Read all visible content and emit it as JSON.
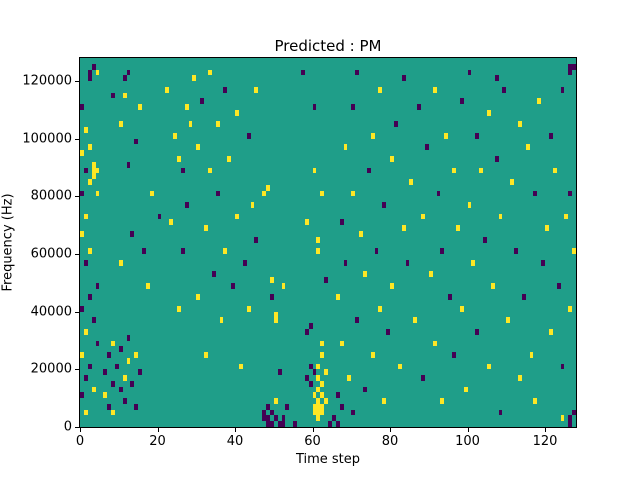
{
  "chart_data": {
    "type": "heatmap",
    "title": "Predicted : PM",
    "xlabel": "Time step",
    "ylabel": "Frequency (Hz)",
    "xlim": [
      0,
      128
    ],
    "ylim": [
      0,
      128000
    ],
    "x_ticks": [
      0,
      20,
      40,
      60,
      80,
      100,
      120
    ],
    "y_ticks": [
      0,
      20000,
      40000,
      60000,
      80000,
      100000,
      120000
    ],
    "grid": {
      "cols": 128,
      "rows": 64,
      "freq_bin_hz": 2000
    },
    "legend": null,
    "grid_lines": false,
    "colors": {
      "background": "#1f9e89",
      "high": "#fde725",
      "low": "#440154"
    },
    "value_legend": {
      "y": "high (yellow)",
      "p": "low (purple)"
    },
    "cells": [
      [
        2,
        61,
        "p"
      ],
      [
        2,
        60,
        "p"
      ],
      [
        3,
        62,
        "p"
      ],
      [
        4,
        61,
        "y"
      ],
      [
        11,
        60,
        "p"
      ],
      [
        12,
        61,
        "p"
      ],
      [
        33,
        61,
        "y"
      ],
      [
        57,
        61,
        "p"
      ],
      [
        71,
        61,
        "p"
      ],
      [
        83,
        60,
        "p"
      ],
      [
        100,
        61,
        "p"
      ],
      [
        107,
        60,
        "p"
      ],
      [
        126,
        62,
        "p"
      ],
      [
        127,
        62,
        "p"
      ],
      [
        126,
        61,
        "p"
      ],
      [
        0,
        55,
        "p"
      ],
      [
        0,
        47,
        "y"
      ],
      [
        0,
        40,
        "p"
      ],
      [
        0,
        33,
        "y"
      ],
      [
        0,
        20,
        "p"
      ],
      [
        0,
        12,
        "y"
      ],
      [
        0,
        5,
        "p"
      ],
      [
        1,
        51,
        "y"
      ],
      [
        1,
        44,
        "p"
      ],
      [
        1,
        36,
        "y"
      ],
      [
        1,
        28,
        "p"
      ],
      [
        1,
        16,
        "y"
      ],
      [
        1,
        8,
        "p"
      ],
      [
        1,
        2,
        "y"
      ],
      [
        2,
        48,
        "y"
      ],
      [
        2,
        42,
        "y"
      ],
      [
        2,
        30,
        "y"
      ],
      [
        2,
        22,
        "p"
      ],
      [
        2,
        10,
        "p"
      ],
      [
        3,
        45,
        "y"
      ],
      [
        3,
        44,
        "y"
      ],
      [
        3,
        43,
        "y"
      ],
      [
        3,
        18,
        "p"
      ],
      [
        3,
        6,
        "y"
      ],
      [
        4,
        44,
        "y"
      ],
      [
        4,
        40,
        "y"
      ],
      [
        4,
        24,
        "p"
      ],
      [
        4,
        14,
        "p"
      ],
      [
        6,
        9,
        "p"
      ],
      [
        6,
        5,
        "y"
      ],
      [
        7,
        12,
        "p"
      ],
      [
        7,
        3,
        "p"
      ],
      [
        8,
        14,
        "y"
      ],
      [
        8,
        7,
        "p"
      ],
      [
        8,
        2,
        "y"
      ],
      [
        9,
        10,
        "p"
      ],
      [
        10,
        13,
        "p"
      ],
      [
        10,
        6,
        "p"
      ],
      [
        11,
        8,
        "y"
      ],
      [
        11,
        4,
        "p"
      ],
      [
        12,
        15,
        "p"
      ],
      [
        12,
        11,
        "y"
      ],
      [
        13,
        7,
        "p"
      ],
      [
        14,
        12,
        "y"
      ],
      [
        14,
        3,
        "p"
      ],
      [
        15,
        9,
        "p"
      ],
      [
        8,
        57,
        "p"
      ],
      [
        10,
        52,
        "y"
      ],
      [
        10,
        28,
        "y"
      ],
      [
        11,
        57,
        "y"
      ],
      [
        12,
        45,
        "p"
      ],
      [
        13,
        33,
        "p"
      ],
      [
        14,
        49,
        "p"
      ],
      [
        15,
        55,
        "y"
      ],
      [
        16,
        30,
        "p"
      ],
      [
        17,
        24,
        "y"
      ],
      [
        18,
        40,
        "y"
      ],
      [
        20,
        36,
        "p"
      ],
      [
        22,
        58,
        "y"
      ],
      [
        23,
        35,
        "y"
      ],
      [
        24,
        50,
        "y"
      ],
      [
        25,
        46,
        "y"
      ],
      [
        25,
        20,
        "y"
      ],
      [
        26,
        44,
        "p"
      ],
      [
        26,
        30,
        "p"
      ],
      [
        27,
        55,
        "y"
      ],
      [
        27,
        38,
        "p"
      ],
      [
        28,
        52,
        "y"
      ],
      [
        29,
        60,
        "y"
      ],
      [
        30,
        48,
        "y"
      ],
      [
        30,
        22,
        "y"
      ],
      [
        31,
        56,
        "p"
      ],
      [
        32,
        34,
        "y"
      ],
      [
        32,
        12,
        "y"
      ],
      [
        33,
        44,
        "y"
      ],
      [
        34,
        26,
        "p"
      ],
      [
        35,
        52,
        "y"
      ],
      [
        35,
        40,
        "p"
      ],
      [
        36,
        18,
        "y"
      ],
      [
        37,
        58,
        "p"
      ],
      [
        37,
        30,
        "y"
      ],
      [
        38,
        46,
        "y"
      ],
      [
        39,
        24,
        "p"
      ],
      [
        40,
        54,
        "y"
      ],
      [
        40,
        36,
        "y"
      ],
      [
        41,
        10,
        "y"
      ],
      [
        42,
        28,
        "p"
      ],
      [
        43,
        50,
        "p"
      ],
      [
        43,
        20,
        "y"
      ],
      [
        44,
        38,
        "y"
      ],
      [
        45,
        32,
        "p"
      ],
      [
        45,
        58,
        "y"
      ],
      [
        47,
        1,
        "p"
      ],
      [
        47,
        2,
        "p"
      ],
      [
        48,
        0,
        "p"
      ],
      [
        48,
        1,
        "p"
      ],
      [
        48,
        3,
        "p"
      ],
      [
        49,
        0,
        "p"
      ],
      [
        49,
        2,
        "p"
      ],
      [
        50,
        1,
        "p"
      ],
      [
        50,
        4,
        "y"
      ],
      [
        51,
        0,
        "p"
      ],
      [
        51,
        9,
        "p"
      ],
      [
        52,
        0,
        "p"
      ],
      [
        52,
        1,
        "p"
      ],
      [
        53,
        3,
        "p"
      ],
      [
        55,
        0,
        "p"
      ],
      [
        49,
        25,
        "y"
      ],
      [
        50,
        19,
        "y"
      ],
      [
        50,
        18,
        "y"
      ],
      [
        52,
        24,
        "y"
      ],
      [
        47,
        40,
        "y"
      ],
      [
        48,
        41,
        "y"
      ],
      [
        49,
        22,
        "p"
      ],
      [
        60,
        2,
        "y"
      ],
      [
        60,
        3,
        "y"
      ],
      [
        60,
        5,
        "y"
      ],
      [
        61,
        1,
        "y"
      ],
      [
        61,
        2,
        "y"
      ],
      [
        61,
        3,
        "y"
      ],
      [
        61,
        4,
        "y"
      ],
      [
        61,
        6,
        "y"
      ],
      [
        61,
        8,
        "y"
      ],
      [
        61,
        10,
        "y"
      ],
      [
        62,
        2,
        "y"
      ],
      [
        62,
        3,
        "y"
      ],
      [
        62,
        5,
        "y"
      ],
      [
        62,
        7,
        "y"
      ],
      [
        62,
        12,
        "y"
      ],
      [
        62,
        14,
        "y"
      ],
      [
        63,
        4,
        "y"
      ],
      [
        63,
        9,
        "y"
      ],
      [
        58,
        8,
        "p"
      ],
      [
        59,
        7,
        "p"
      ],
      [
        59,
        10,
        "p"
      ],
      [
        60,
        9,
        "p"
      ],
      [
        64,
        0,
        "p"
      ],
      [
        65,
        1,
        "p"
      ],
      [
        66,
        0,
        "p"
      ],
      [
        66,
        5,
        "p"
      ],
      [
        67,
        3,
        "p"
      ],
      [
        58,
        16,
        "p"
      ],
      [
        59,
        17,
        "p"
      ],
      [
        60,
        44,
        "y"
      ],
      [
        61,
        30,
        "y"
      ],
      [
        61,
        32,
        "y"
      ],
      [
        62,
        40,
        "y"
      ],
      [
        60,
        55,
        "p"
      ],
      [
        58,
        35,
        "y"
      ],
      [
        63,
        25,
        "p"
      ],
      [
        66,
        22,
        "y"
      ],
      [
        67,
        35,
        "p"
      ],
      [
        67,
        14,
        "y"
      ],
      [
        68,
        48,
        "y"
      ],
      [
        68,
        28,
        "p"
      ],
      [
        69,
        8,
        "y"
      ],
      [
        70,
        55,
        "p"
      ],
      [
        70,
        40,
        "y"
      ],
      [
        70,
        2,
        "p"
      ],
      [
        71,
        18,
        "p"
      ],
      [
        72,
        33,
        "y"
      ],
      [
        73,
        26,
        "y"
      ],
      [
        73,
        6,
        "p"
      ],
      [
        74,
        44,
        "p"
      ],
      [
        75,
        12,
        "y"
      ],
      [
        75,
        50,
        "y"
      ],
      [
        76,
        30,
        "p"
      ],
      [
        77,
        58,
        "y"
      ],
      [
        77,
        20,
        "y"
      ],
      [
        78,
        38,
        "p"
      ],
      [
        78,
        4,
        "y"
      ],
      [
        79,
        16,
        "p"
      ],
      [
        80,
        46,
        "y"
      ],
      [
        80,
        24,
        "y"
      ],
      [
        81,
        52,
        "p"
      ],
      [
        82,
        10,
        "y"
      ],
      [
        83,
        34,
        "y"
      ],
      [
        84,
        28,
        "p"
      ],
      [
        85,
        42,
        "y"
      ],
      [
        86,
        18,
        "y"
      ],
      [
        87,
        55,
        "p"
      ],
      [
        88,
        36,
        "y"
      ],
      [
        88,
        8,
        "p"
      ],
      [
        89,
        48,
        "p"
      ],
      [
        90,
        26,
        "y"
      ],
      [
        91,
        58,
        "y"
      ],
      [
        91,
        14,
        "y"
      ],
      [
        92,
        40,
        "p"
      ],
      [
        93,
        30,
        "p"
      ],
      [
        93,
        4,
        "y"
      ],
      [
        94,
        50,
        "y"
      ],
      [
        95,
        22,
        "p"
      ],
      [
        96,
        44,
        "y"
      ],
      [
        96,
        12,
        "p"
      ],
      [
        97,
        34,
        "y"
      ],
      [
        98,
        56,
        "p"
      ],
      [
        98,
        20,
        "y"
      ],
      [
        99,
        6,
        "y"
      ],
      [
        100,
        38,
        "y"
      ],
      [
        101,
        28,
        "y"
      ],
      [
        102,
        50,
        "p"
      ],
      [
        102,
        16,
        "p"
      ],
      [
        103,
        44,
        "y"
      ],
      [
        104,
        32,
        "p"
      ],
      [
        105,
        54,
        "y"
      ],
      [
        105,
        10,
        "y"
      ],
      [
        106,
        24,
        "y"
      ],
      [
        107,
        46,
        "p"
      ],
      [
        108,
        36,
        "y"
      ],
      [
        108,
        2,
        "p"
      ],
      [
        109,
        58,
        "p"
      ],
      [
        110,
        18,
        "y"
      ],
      [
        111,
        42,
        "y"
      ],
      [
        112,
        30,
        "p"
      ],
      [
        113,
        52,
        "y"
      ],
      [
        113,
        8,
        "y"
      ],
      [
        114,
        22,
        "p"
      ],
      [
        115,
        48,
        "y"
      ],
      [
        116,
        12,
        "y"
      ],
      [
        117,
        40,
        "p"
      ],
      [
        117,
        4,
        "y"
      ],
      [
        118,
        56,
        "y"
      ],
      [
        119,
        28,
        "p"
      ],
      [
        120,
        34,
        "y"
      ],
      [
        121,
        50,
        "p"
      ],
      [
        121,
        16,
        "y"
      ],
      [
        122,
        44,
        "y"
      ],
      [
        123,
        24,
        "p"
      ],
      [
        124,
        58,
        "p"
      ],
      [
        124,
        10,
        "p"
      ],
      [
        124,
        1,
        "y"
      ],
      [
        125,
        36,
        "y"
      ],
      [
        126,
        40,
        "p"
      ],
      [
        126,
        20,
        "y"
      ],
      [
        126,
        1,
        "p"
      ],
      [
        126,
        0,
        "p"
      ],
      [
        127,
        30,
        "y"
      ],
      [
        127,
        2,
        "p"
      ]
    ]
  }
}
